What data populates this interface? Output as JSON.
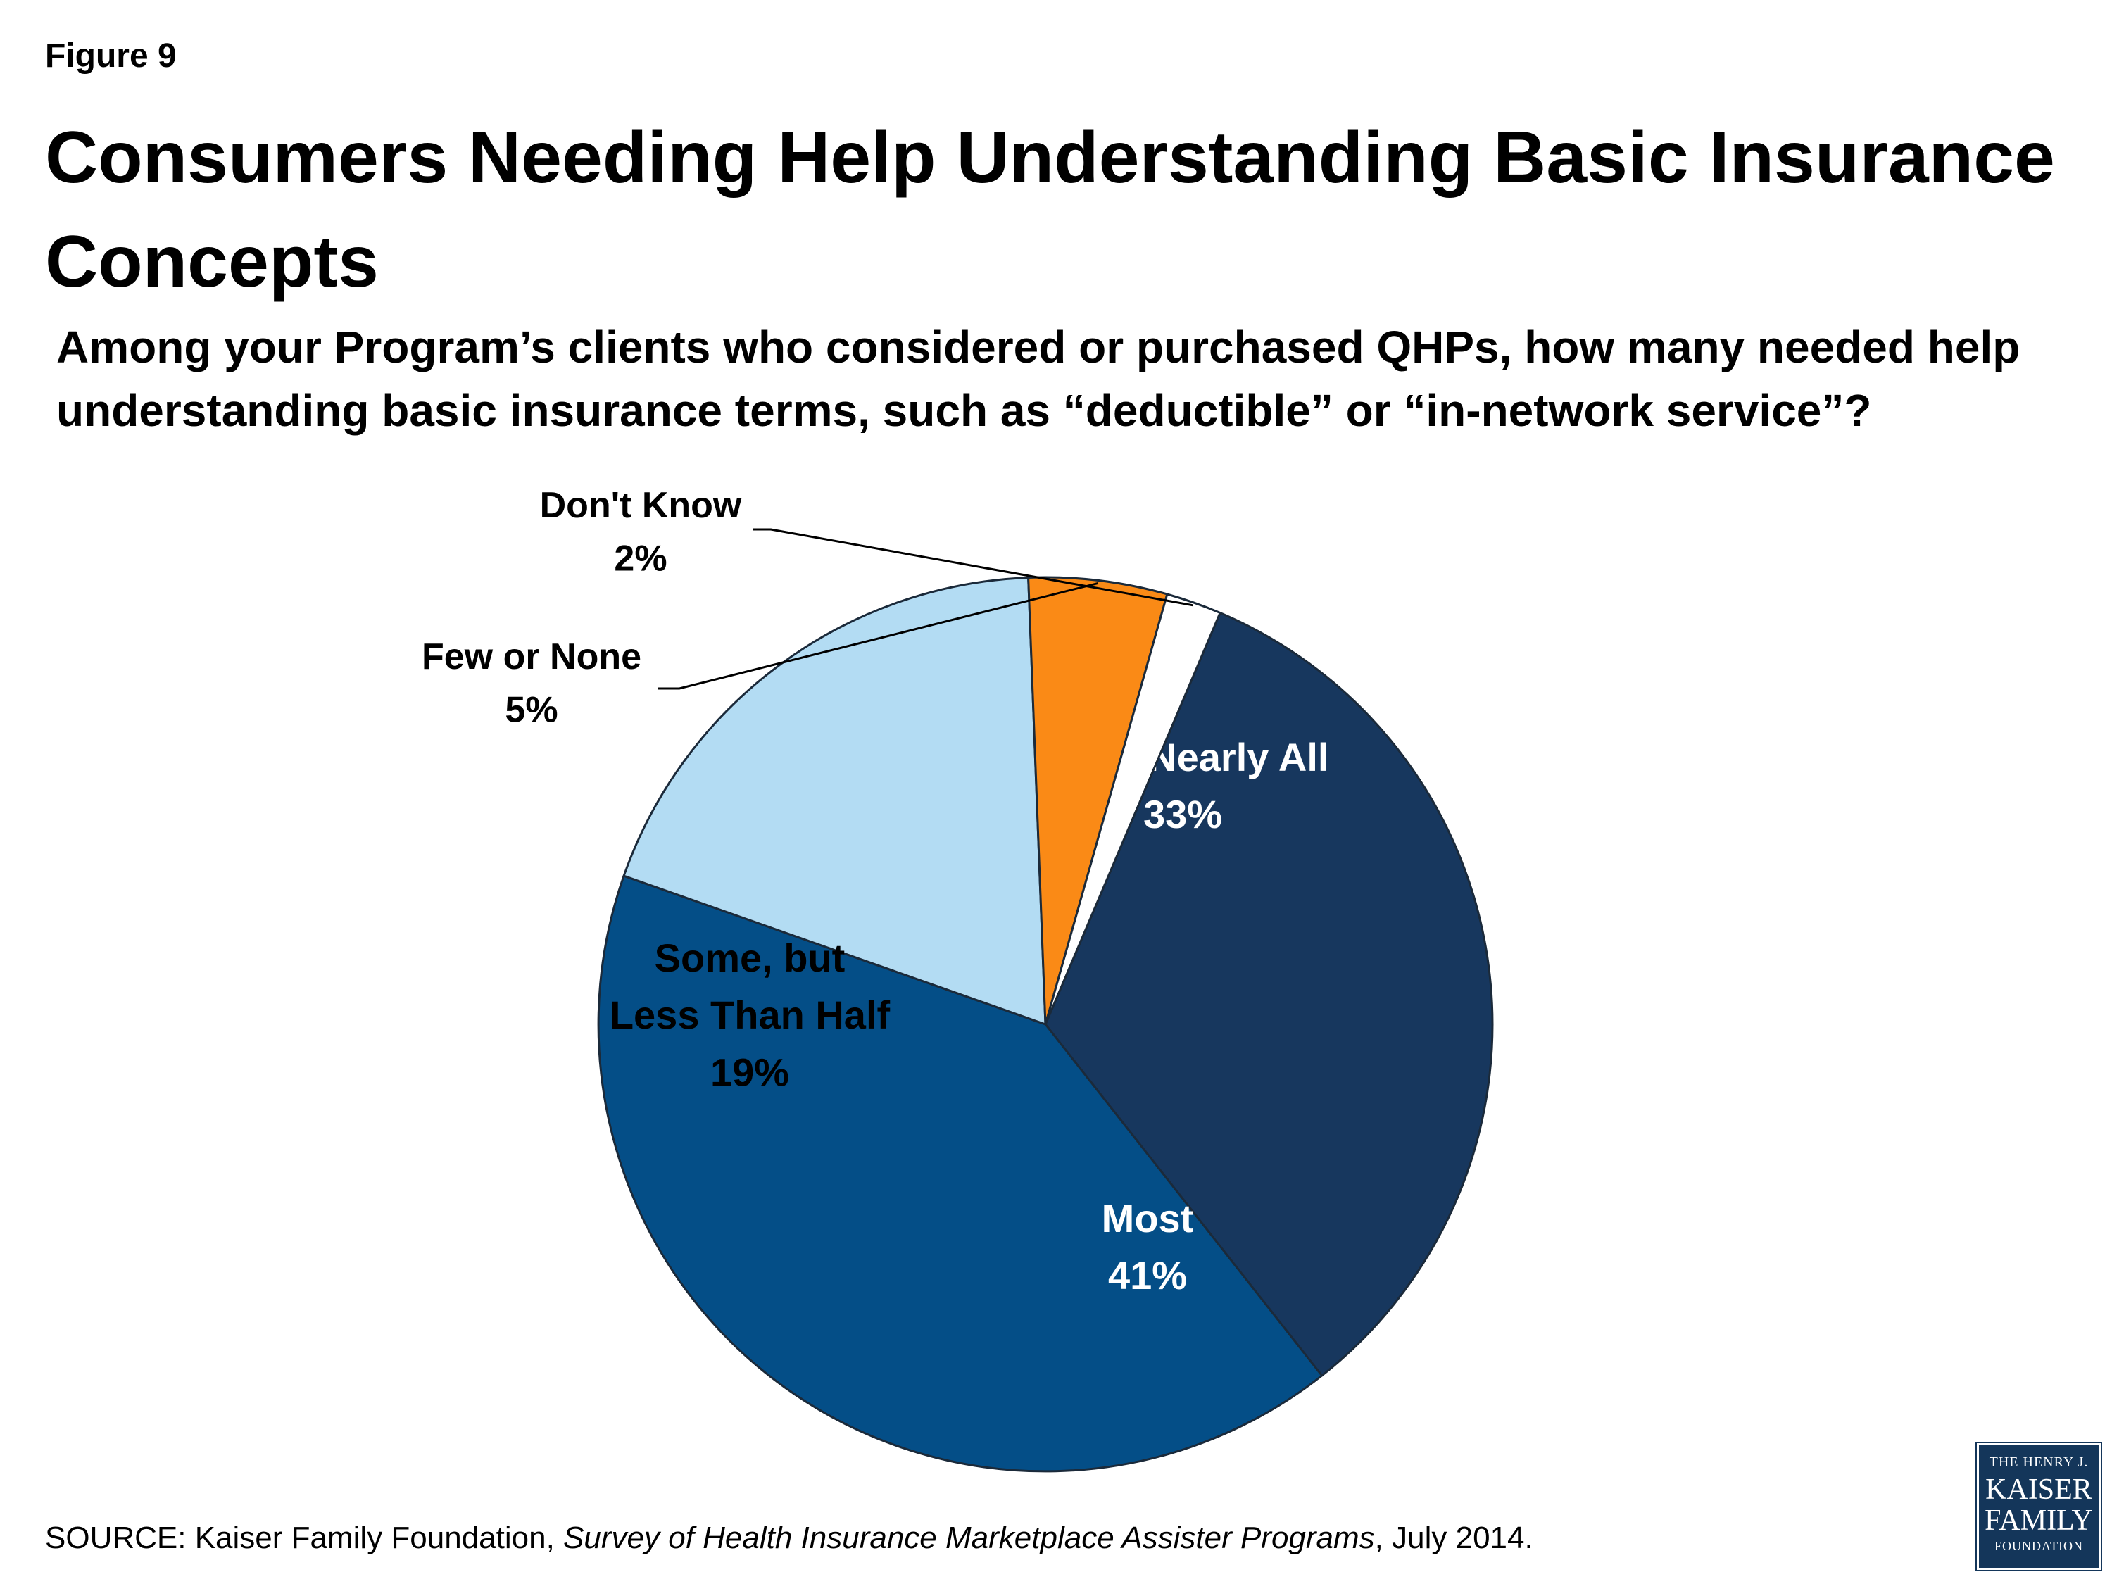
{
  "figure_label": "Figure 9",
  "title": "Consumers Needing Help Understanding Basic Insurance Concepts",
  "subtitle": "Among your Program’s clients who considered or purchased QHPs, how many needed help understanding basic insurance terms, such as “deductible” or “in-network service”?",
  "source": {
    "prefix": "SOURCE: Kaiser Family Foundation, ",
    "italic": "Survey of Health Insurance Marketplace Assister Programs",
    "suffix": ", July 2014."
  },
  "logo": {
    "line1": "THE HENRY J.",
    "line2": "KAISER",
    "line3": "FAMILY",
    "line4": "FOUNDATION"
  },
  "chart_data": {
    "type": "pie",
    "start_angle_deg": -67,
    "direction": "clockwise",
    "slices": [
      {
        "label": "All or Nearly All",
        "value": 33,
        "value_label": "33%",
        "color": "#17375e",
        "label_color": "#ffffff"
      },
      {
        "label": "Most",
        "value": 41,
        "value_label": "41%",
        "color": "#044e87",
        "label_color": "#ffffff"
      },
      {
        "label": "Some, but Less Than Half",
        "value": 19,
        "value_label": "19%",
        "color": "#b3dcf3",
        "label_color": "#000000"
      },
      {
        "label": "Few or None",
        "value": 5,
        "value_label": "5%",
        "color": "#fa8a16",
        "label_color": "#000000"
      },
      {
        "label": "Don't Know",
        "value": 2,
        "value_label": "2%",
        "color": "#ffffff",
        "label_color": "#000000"
      }
    ],
    "legend": "none"
  }
}
